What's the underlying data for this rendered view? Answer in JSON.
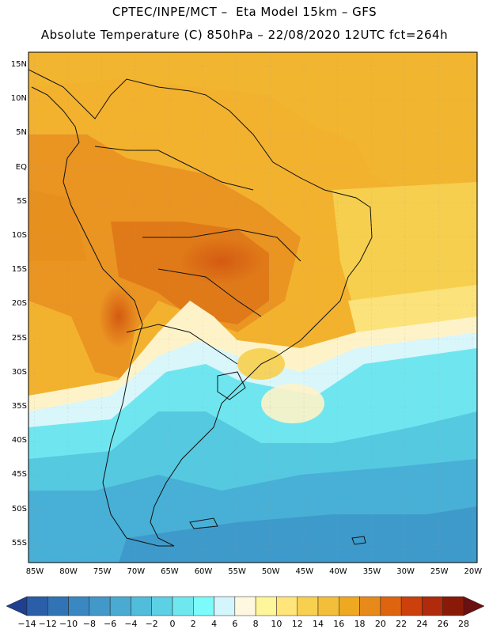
{
  "header": {
    "line1": "CPTEC/INPE/MCT –  Eta Model 15km – GFS",
    "line2": "Absolute Temperature (C) 850hPa – 22/08/2020 12UTC fct=264h"
  },
  "axes": {
    "lat_labels": [
      "15N",
      "10N",
      "5N",
      "EQ",
      "5S",
      "10S",
      "15S",
      "20S",
      "25S",
      "30S",
      "35S",
      "40S",
      "45S",
      "50S",
      "55S"
    ],
    "lon_labels": [
      "85W",
      "80W",
      "75W",
      "70W",
      "65W",
      "60W",
      "55W",
      "50W",
      "45W",
      "40W",
      "35W",
      "30W",
      "25W",
      "20W"
    ]
  },
  "colorbar": {
    "labels": [
      "-14",
      "-12",
      "-10",
      "-8",
      "-6",
      "-4",
      "-2",
      "0",
      "2",
      "4",
      "6",
      "8",
      "10",
      "12",
      "14",
      "16",
      "18",
      "20",
      "22",
      "24",
      "26",
      "28"
    ],
    "colors": [
      "#1f3f8f",
      "#2a5ea8",
      "#3174b5",
      "#3a88c2",
      "#4299c9",
      "#4aaad2",
      "#52bcdb",
      "#5cd0e4",
      "#6ee8ee",
      "#7cfbfb",
      "#d4f5fb",
      "#fff8e0",
      "#fff59a",
      "#ffe57a",
      "#f8d050",
      "#f3be3a",
      "#efa822",
      "#e88a1a",
      "#de6410",
      "#cc400c",
      "#b02a0c",
      "#8a1a08",
      "#6a1010"
    ]
  }
}
